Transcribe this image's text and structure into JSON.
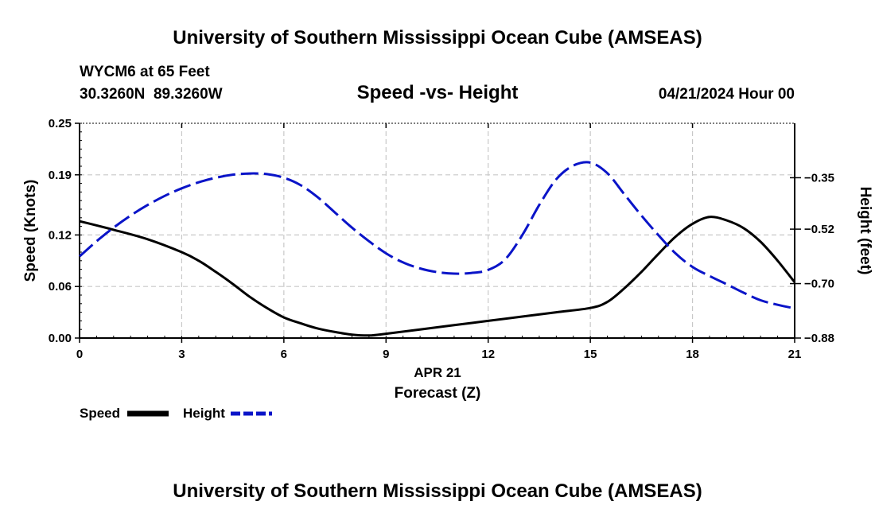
{
  "page": {
    "title_top": "University of Southern Mississippi Ocean Cube (AMSEAS)",
    "title_bottom": "University of Southern Mississippi Ocean Cube (AMSEAS)",
    "station": "WYCM6 at 65 Feet",
    "coords": "30.3260N  89.3260W",
    "date": "04/21/2024 Hour 00"
  },
  "chart_data": {
    "type": "line",
    "title": "Speed -vs- Height",
    "xlabel": "Forecast (Z)",
    "x_sublabel": "APR 21",
    "ylabel": "Speed (Knots)",
    "y2label": "Height (feet)",
    "xlim": [
      0,
      21
    ],
    "ylim": [
      0,
      0.25
    ],
    "y2lim": [
      -0.88,
      -0.17
    ],
    "grid": true,
    "x_ticks": [
      0,
      3,
      6,
      9,
      12,
      15,
      18,
      21
    ],
    "x_tick_labels": [
      "0",
      "3",
      "6",
      "9",
      "12",
      "15",
      "18",
      "21"
    ],
    "y_ticks": [
      0.0,
      0.06,
      0.12,
      0.19,
      0.25
    ],
    "y_tick_labels": [
      "0.00",
      "0.06",
      "0.12",
      "0.19",
      "0.25"
    ],
    "y2_ticks": [
      -0.88,
      -0.7,
      -0.52,
      -0.35
    ],
    "y2_tick_labels": [
      "-0.88",
      "-0.70",
      "-0.52",
      "-0.35"
    ],
    "series": [
      {
        "name": "Speed",
        "axis": "left",
        "color": "#000000",
        "style": "solid",
        "x": [
          0,
          1,
          2,
          3,
          3.5,
          4,
          4.5,
          5,
          5.5,
          6,
          6.5,
          7,
          7.5,
          8,
          8.5,
          9,
          10,
          11,
          12,
          13,
          14,
          15,
          15.5,
          16,
          16.5,
          17,
          17.5,
          18,
          18.5,
          19,
          19.5,
          20,
          20.5,
          21
        ],
        "values": [
          0.136,
          0.126,
          0.115,
          0.1,
          0.09,
          0.077,
          0.063,
          0.048,
          0.035,
          0.024,
          0.017,
          0.011,
          0.007,
          0.004,
          0.003,
          0.005,
          0.01,
          0.015,
          0.02,
          0.025,
          0.03,
          0.035,
          0.042,
          0.058,
          0.077,
          0.098,
          0.118,
          0.133,
          0.141,
          0.137,
          0.128,
          0.112,
          0.09,
          0.065
        ]
      },
      {
        "name": "Height",
        "axis": "right",
        "color": "#0a14c8",
        "style": "dashed",
        "x": [
          0,
          0.5,
          1,
          1.5,
          2,
          2.5,
          3,
          3.5,
          4,
          4.5,
          5,
          5.5,
          6,
          6.5,
          7,
          7.5,
          8,
          8.5,
          9,
          9.5,
          10,
          10.5,
          11,
          11.5,
          12,
          12.5,
          13,
          13.5,
          14,
          14.5,
          15,
          15.5,
          16,
          16.5,
          17,
          17.5,
          18,
          18.5,
          19,
          19.5,
          20,
          20.5,
          21
        ],
        "values": [
          -0.61,
          -0.56,
          -0.515,
          -0.475,
          -0.44,
          -0.41,
          -0.385,
          -0.365,
          -0.35,
          -0.34,
          -0.336,
          -0.338,
          -0.35,
          -0.375,
          -0.415,
          -0.465,
          -0.515,
          -0.56,
          -0.6,
          -0.63,
          -0.65,
          -0.662,
          -0.667,
          -0.665,
          -0.655,
          -0.62,
          -0.54,
          -0.44,
          -0.355,
          -0.31,
          -0.3,
          -0.335,
          -0.405,
          -0.475,
          -0.54,
          -0.6,
          -0.645,
          -0.675,
          -0.702,
          -0.73,
          -0.755,
          -0.77,
          -0.782
        ]
      }
    ],
    "legend": [
      {
        "label": "Speed",
        "color": "#000000",
        "style": "solid"
      },
      {
        "label": "Height",
        "color": "#0a14c8",
        "style": "dashed"
      }
    ],
    "legend_position": "bottom-left"
  }
}
